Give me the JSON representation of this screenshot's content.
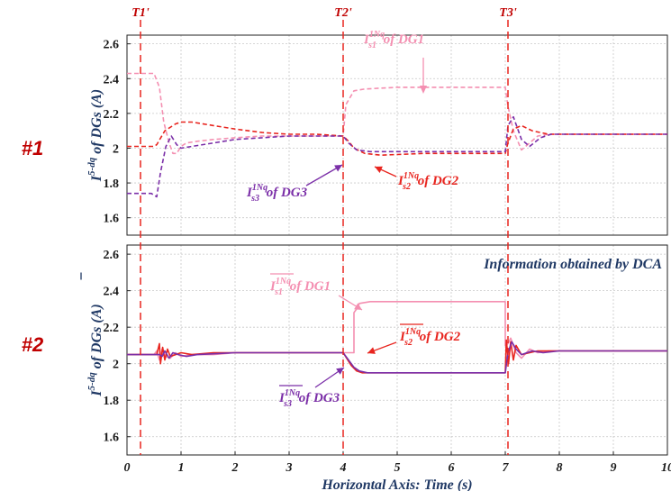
{
  "colors": {
    "dg1": "#f48fb1",
    "dg2": "#e8251f",
    "dg3": "#7b2fa8",
    "event": "#e8251f",
    "label": "#1f3864",
    "panel_id": "#c00000"
  },
  "chart_data": [
    {
      "type": "line",
      "panel_id": "#1",
      "ylabel": "I^{5-dq} of DGs (A)",
      "ylim": [
        1.5,
        2.65
      ],
      "yticks": [
        "1.6",
        "1.8",
        "2",
        "2.2",
        "2.4",
        "2.6"
      ],
      "xlim": [
        0,
        10
      ],
      "grid": true,
      "series": [
        {
          "name": "I_s1^{1Nq} of DG1",
          "x": [
            0,
            0.3,
            0.5,
            0.6,
            0.68,
            0.78,
            0.85,
            0.92,
            1.0,
            1.1,
            1.3,
            1.6,
            2.0,
            2.5,
            3.0,
            3.5,
            4.0,
            4.05,
            4.2,
            4.4,
            5.0,
            7.0,
            7.05,
            7.15,
            7.3,
            7.45,
            7.6,
            7.8,
            8.1,
            9.0,
            10.0
          ],
          "y": [
            2.43,
            2.43,
            2.43,
            2.35,
            2.15,
            2.03,
            1.97,
            1.97,
            2.01,
            2.03,
            2.04,
            2.05,
            2.06,
            2.07,
            2.07,
            2.07,
            2.07,
            2.25,
            2.33,
            2.34,
            2.35,
            2.35,
            2.24,
            2.1,
            1.99,
            2.03,
            2.07,
            2.08,
            2.08,
            2.08,
            2.08
          ]
        },
        {
          "name": "I_s2^{1Nq} of DG2",
          "x": [
            0,
            0.3,
            0.5,
            0.55,
            0.7,
            0.9,
            1.0,
            1.2,
            1.6,
            2.0,
            2.5,
            3.0,
            3.5,
            4.0,
            4.1,
            4.2,
            4.4,
            4.7,
            5.5,
            7.0,
            7.05,
            7.15,
            7.3,
            7.5,
            7.8,
            8.1,
            9.0,
            10.0
          ],
          "y": [
            2.01,
            2.01,
            2.01,
            2.02,
            2.1,
            2.14,
            2.15,
            2.15,
            2.13,
            2.11,
            2.09,
            2.08,
            2.08,
            2.07,
            2.04,
            2.0,
            1.97,
            1.96,
            1.97,
            1.97,
            2.03,
            2.11,
            2.13,
            2.1,
            2.08,
            2.08,
            2.08,
            2.08
          ]
        },
        {
          "name": "I_s3^{1Nq} of DG3",
          "x": [
            0,
            0.3,
            0.45,
            0.55,
            0.62,
            0.72,
            0.82,
            0.92,
            1.0,
            1.2,
            1.6,
            2.0,
            2.5,
            3.0,
            3.5,
            4.0,
            4.1,
            4.25,
            4.5,
            5.0,
            7.0,
            7.05,
            7.15,
            7.3,
            7.45,
            7.65,
            7.85,
            8.1,
            9.0,
            10.0
          ],
          "y": [
            1.74,
            1.74,
            1.74,
            1.72,
            1.86,
            2.01,
            2.07,
            2.02,
            2.0,
            2.01,
            2.03,
            2.05,
            2.06,
            2.07,
            2.07,
            2.07,
            2.03,
            1.99,
            1.98,
            1.98,
            1.98,
            2.13,
            2.18,
            2.05,
            2.01,
            2.06,
            2.08,
            2.08,
            2.08,
            2.08
          ]
        }
      ]
    },
    {
      "type": "line",
      "panel_id": "#2",
      "title": "Information obtained by DCA",
      "ylabel": "I^{5-dq} of DGs (A) (overlined)",
      "ylim": [
        1.5,
        2.65
      ],
      "yticks": [
        "1.6",
        "1.8",
        "2",
        "2.2",
        "2.4",
        "2.6"
      ],
      "xlim": [
        0,
        10
      ],
      "xticks": [
        "0",
        "1",
        "2",
        "3",
        "4",
        "5",
        "6",
        "7",
        "8",
        "9",
        "10"
      ],
      "xlabel": "Horizontal Axis: Time (s)",
      "grid": true,
      "series": [
        {
          "name": "I_s1^{1Nq} of DG1 (overlined)",
          "x": [
            0,
            0.5,
            0.55,
            0.6,
            0.65,
            0.72,
            0.8,
            0.9,
            1.0,
            1.2,
            1.6,
            2.0,
            3.0,
            4.0,
            4.2,
            4.2,
            4.25,
            4.3,
            4.5,
            5.0,
            7.0,
            7.0,
            7.05,
            7.1,
            7.2,
            7.3,
            7.45,
            7.6,
            7.8,
            8.2,
            9.0,
            10.0
          ],
          "y": [
            2.05,
            2.05,
            2.07,
            2.02,
            2.08,
            2.04,
            2.03,
            2.06,
            2.04,
            2.05,
            2.05,
            2.06,
            2.06,
            2.06,
            2.06,
            2.28,
            2.3,
            2.33,
            2.34,
            2.34,
            2.34,
            2.1,
            2.11,
            2.14,
            2.06,
            2.03,
            2.08,
            2.06,
            2.07,
            2.07,
            2.07,
            2.07
          ]
        },
        {
          "name": "I_s2^{1Nq} of DG2 (overlined)",
          "x": [
            0,
            0.55,
            0.6,
            0.62,
            0.66,
            0.7,
            0.75,
            0.8,
            0.9,
            1.0,
            1.2,
            1.6,
            2.0,
            3.0,
            4.0,
            4.15,
            4.25,
            4.35,
            4.5,
            5.0,
            7.0,
            7.02,
            7.06,
            7.1,
            7.15,
            7.2,
            7.3,
            7.45,
            7.6,
            8.0,
            9.0,
            10.0
          ],
          "y": [
            2.05,
            2.05,
            2.11,
            2.0,
            2.09,
            2.02,
            2.08,
            2.04,
            2.05,
            2.06,
            2.05,
            2.06,
            2.06,
            2.06,
            2.06,
            1.99,
            1.96,
            1.95,
            1.95,
            1.95,
            1.95,
            2.13,
            2.0,
            2.12,
            2.02,
            2.1,
            2.05,
            2.06,
            2.07,
            2.07,
            2.07,
            2.07
          ]
        },
        {
          "name": "I_s3^{1Nq} of DG3 (overlined)",
          "x": [
            0,
            0.6,
            0.65,
            0.7,
            0.78,
            0.85,
            0.95,
            1.1,
            1.3,
            2.0,
            3.0,
            4.0,
            4.1,
            4.2,
            4.3,
            4.45,
            5.0,
            7.0,
            7.05,
            7.12,
            7.2,
            7.3,
            7.5,
            7.7,
            8.0,
            9.0,
            10.0
          ],
          "y": [
            2.05,
            2.05,
            2.04,
            2.07,
            2.03,
            2.06,
            2.05,
            2.04,
            2.05,
            2.06,
            2.06,
            2.06,
            2.02,
            1.98,
            1.96,
            1.95,
            1.95,
            1.95,
            2.06,
            2.12,
            2.08,
            2.05,
            2.07,
            2.06,
            2.07,
            2.07,
            2.07
          ]
        }
      ]
    }
  ],
  "events": [
    {
      "label": "T1'",
      "x": 0.25
    },
    {
      "label": "T2'",
      "x": 4.0
    },
    {
      "label": "T3'",
      "x": 7.05
    }
  ],
  "annotations": {
    "p1_dg1": {
      "main": "I",
      "sub": "s1",
      "sup": "1Nq",
      "suffix": " of DG1"
    },
    "p1_dg2": {
      "main": "I",
      "sub": "s2",
      "sup": "1Nq",
      "suffix": " of DG2"
    },
    "p1_dg3": {
      "main": "I",
      "sub": "s3",
      "sup": "1Nq",
      "suffix": " of DG3"
    },
    "p2_dg1": {
      "main": "I",
      "sub": "s1",
      "sup": "1Nq",
      "suffix": " of DG1"
    },
    "p2_dg2": {
      "main": "I",
      "sub": "s2",
      "sup": "1Nq",
      "suffix": " of DG2"
    },
    "p2_dg3": {
      "main": "I",
      "sub": "s3",
      "sup": "1Nq",
      "suffix": " of DG3"
    }
  },
  "ylabel_parts": {
    "main": "I",
    "sup": "5-dq",
    "rest": " of DGs (A)"
  }
}
